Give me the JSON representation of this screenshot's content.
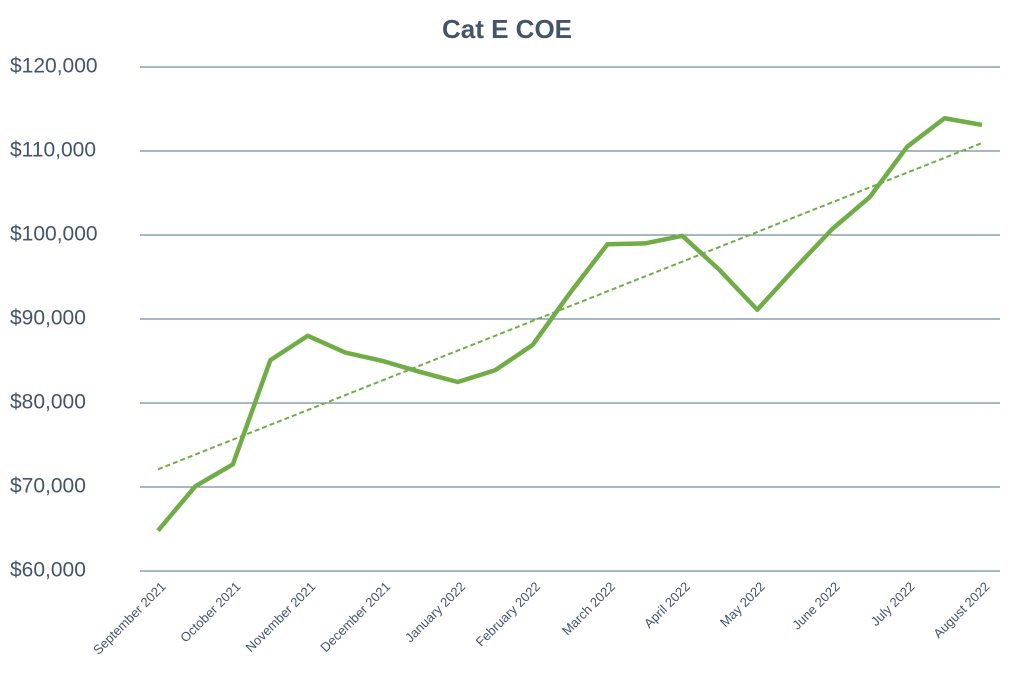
{
  "chart_data": {
    "type": "line",
    "title": "Cat E COE",
    "categories": [
      "September 2021",
      null,
      "October 2021",
      null,
      "November 2021",
      null,
      "December 2021",
      null,
      "January 2022",
      null,
      "February 2022",
      null,
      "March 2022",
      null,
      "April 2022",
      null,
      "May 2022",
      null,
      "June 2022",
      null,
      "July 2022",
      null,
      "August 2022"
    ],
    "series": [
      {
        "name": "Cat E COE",
        "color": "#70ad47",
        "values": [
          64800,
          70100,
          72700,
          85100,
          88000,
          86000,
          85000,
          83700,
          82500,
          83900,
          86900,
          93100,
          98900,
          99000,
          99900,
          95800,
          91100,
          96000,
          100700,
          104500,
          110500,
          113900,
          113100
        ]
      }
    ],
    "trendline": "linear",
    "ylim": [
      60000,
      120000
    ],
    "yticks": [
      {
        "value": 60000,
        "label": "$60,000"
      },
      {
        "value": 70000,
        "label": "$70,000"
      },
      {
        "value": 80000,
        "label": "$80,000"
      },
      {
        "value": 90000,
        "label": "$90,000"
      },
      {
        "value": 100000,
        "label": "$100,000"
      },
      {
        "value": 110000,
        "label": "$110,000"
      },
      {
        "value": 120000,
        "label": "$120,000"
      }
    ],
    "grid": true
  }
}
